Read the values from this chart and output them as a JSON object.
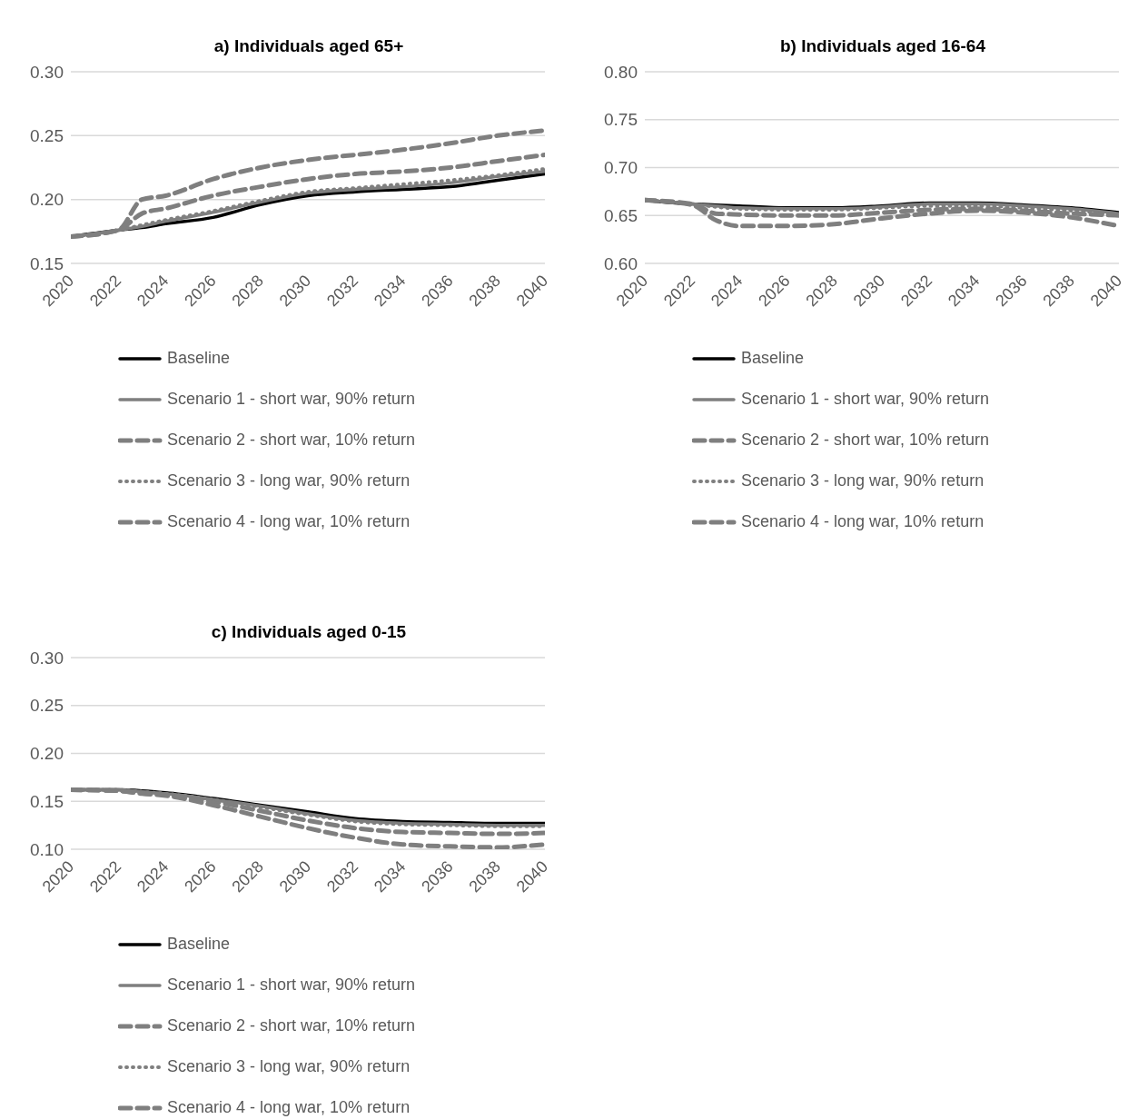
{
  "chart_data": [
    {
      "type": "line",
      "title": "a) Individuals aged 65+",
      "x": [
        2020,
        2022,
        2023,
        2024,
        2026,
        2028,
        2030,
        2032,
        2034,
        2036,
        2038,
        2040
      ],
      "xlim": [
        2020,
        2040
      ],
      "xticks": [
        2020,
        2022,
        2024,
        2026,
        2028,
        2030,
        2032,
        2034,
        2036,
        2038,
        2040
      ],
      "ylim": [
        0.15,
        0.3
      ],
      "yticks": [
        {
          "value": 0.15,
          "label": "0.15"
        },
        {
          "value": 0.2,
          "label": "0.20"
        },
        {
          "value": 0.25,
          "label": "0.25"
        },
        {
          "value": 0.3,
          "label": "0.30"
        }
      ],
      "grid": "y",
      "legend": "bottom",
      "series": [
        {
          "name": "Baseline",
          "color": "#000000",
          "line_style": "solid",
          "values": [
            0.171,
            0.176,
            0.178,
            0.181,
            0.186,
            0.196,
            0.203,
            0.206,
            0.208,
            0.21,
            0.215,
            0.22
          ]
        },
        {
          "name": "Scenario 1 - short war, 90% return",
          "color": "#7f7f7f",
          "line_style": "solid",
          "values": [
            0.171,
            0.176,
            0.179,
            0.183,
            0.19,
            0.198,
            0.205,
            0.208,
            0.21,
            0.213,
            0.218,
            0.222
          ]
        },
        {
          "name": "Scenario 2 - short war, 10% return",
          "color": "#7f7f7f",
          "line_style": "dashed",
          "values": [
            0.171,
            0.176,
            0.189,
            0.193,
            0.203,
            0.21,
            0.216,
            0.22,
            0.222,
            0.225,
            0.23,
            0.235
          ]
        },
        {
          "name": "Scenario 3 - long war, 90% return",
          "color": "#7f7f7f",
          "line_style": "dotted",
          "values": [
            0.171,
            0.176,
            0.18,
            0.184,
            0.191,
            0.199,
            0.206,
            0.209,
            0.212,
            0.215,
            0.219,
            0.224
          ]
        },
        {
          "name": "Scenario 4 - long war, 10% return",
          "color": "#7f7f7f",
          "line_style": "dashed",
          "values": [
            0.171,
            0.176,
            0.2,
            0.203,
            0.216,
            0.225,
            0.231,
            0.235,
            0.239,
            0.244,
            0.25,
            0.254
          ]
        }
      ]
    },
    {
      "type": "line",
      "title": "b) Individuals aged 16-64",
      "x": [
        2020,
        2022,
        2023,
        2024,
        2026,
        2028,
        2030,
        2032,
        2034,
        2036,
        2038,
        2040
      ],
      "xlim": [
        2020,
        2040
      ],
      "xticks": [
        2020,
        2022,
        2024,
        2026,
        2028,
        2030,
        2032,
        2034,
        2036,
        2038,
        2040
      ],
      "ylim": [
        0.6,
        0.8
      ],
      "yticks": [
        {
          "value": 0.6,
          "label": "0.60"
        },
        {
          "value": 0.65,
          "label": "0.65"
        },
        {
          "value": 0.7,
          "label": "0.70"
        },
        {
          "value": 0.75,
          "label": "0.75"
        },
        {
          "value": 0.8,
          "label": "0.80"
        }
      ],
      "grid": "y",
      "legend": "bottom",
      "series": [
        {
          "name": "Baseline",
          "color": "#000000",
          "line_style": "solid",
          "values": [
            0.666,
            0.662,
            0.661,
            0.66,
            0.658,
            0.658,
            0.66,
            0.663,
            0.663,
            0.661,
            0.658,
            0.653
          ]
        },
        {
          "name": "Scenario 1 - short war, 90% return",
          "color": "#7f7f7f",
          "line_style": "solid",
          "values": [
            0.666,
            0.662,
            0.66,
            0.658,
            0.657,
            0.657,
            0.659,
            0.662,
            0.662,
            0.66,
            0.657,
            0.652
          ]
        },
        {
          "name": "Scenario 2 - short war, 10% return",
          "color": "#7f7f7f",
          "line_style": "dashed",
          "values": [
            0.666,
            0.662,
            0.652,
            0.651,
            0.65,
            0.65,
            0.653,
            0.656,
            0.657,
            0.655,
            0.652,
            0.65
          ]
        },
        {
          "name": "Scenario 3 - long war, 90% return",
          "color": "#7f7f7f",
          "line_style": "dotted",
          "values": [
            0.666,
            0.662,
            0.659,
            0.657,
            0.656,
            0.656,
            0.658,
            0.66,
            0.66,
            0.658,
            0.655,
            0.651
          ]
        },
        {
          "name": "Scenario 4 - long war, 10% return",
          "color": "#7f7f7f",
          "line_style": "dashed",
          "values": [
            0.666,
            0.661,
            0.645,
            0.639,
            0.639,
            0.641,
            0.647,
            0.652,
            0.655,
            0.653,
            0.648,
            0.639
          ]
        }
      ]
    },
    {
      "type": "line",
      "title": "c) Individuals aged 0-15",
      "x": [
        2020,
        2022,
        2023,
        2024,
        2026,
        2028,
        2030,
        2032,
        2034,
        2036,
        2038,
        2040
      ],
      "xlim": [
        2020,
        2040
      ],
      "xticks": [
        2020,
        2022,
        2024,
        2026,
        2028,
        2030,
        2032,
        2034,
        2036,
        2038,
        2040
      ],
      "ylim": [
        0.1,
        0.3
      ],
      "yticks": [
        {
          "value": 0.1,
          "label": "0.10"
        },
        {
          "value": 0.15,
          "label": "0.15"
        },
        {
          "value": 0.2,
          "label": "0.20"
        },
        {
          "value": 0.25,
          "label": "0.25"
        },
        {
          "value": 0.3,
          "label": "0.30"
        }
      ],
      "grid": "y",
      "legend": "bottom",
      "series": [
        {
          "name": "Baseline",
          "color": "#000000",
          "line_style": "solid",
          "values": [
            0.162,
            0.162,
            0.161,
            0.159,
            0.153,
            0.146,
            0.139,
            0.132,
            0.129,
            0.128,
            0.127,
            0.127
          ]
        },
        {
          "name": "Scenario 1 - short war, 90% return",
          "color": "#7f7f7f",
          "line_style": "solid",
          "values": [
            0.162,
            0.162,
            0.16,
            0.158,
            0.152,
            0.145,
            0.137,
            0.13,
            0.127,
            0.126,
            0.125,
            0.125
          ]
        },
        {
          "name": "Scenario 2 - short war, 10% return",
          "color": "#7f7f7f",
          "line_style": "dashed",
          "values": [
            0.162,
            0.161,
            0.159,
            0.157,
            0.15,
            0.14,
            0.13,
            0.122,
            0.118,
            0.117,
            0.116,
            0.117
          ]
        },
        {
          "name": "Scenario 3 - long war, 90% return",
          "color": "#7f7f7f",
          "line_style": "dotted",
          "values": [
            0.162,
            0.162,
            0.16,
            0.158,
            0.152,
            0.144,
            0.136,
            0.129,
            0.126,
            0.125,
            0.124,
            0.124
          ]
        },
        {
          "name": "Scenario 4 - long war, 10% return",
          "color": "#7f7f7f",
          "line_style": "dashed",
          "values": [
            0.162,
            0.161,
            0.158,
            0.156,
            0.146,
            0.134,
            0.122,
            0.112,
            0.105,
            0.103,
            0.102,
            0.105
          ]
        }
      ]
    }
  ]
}
